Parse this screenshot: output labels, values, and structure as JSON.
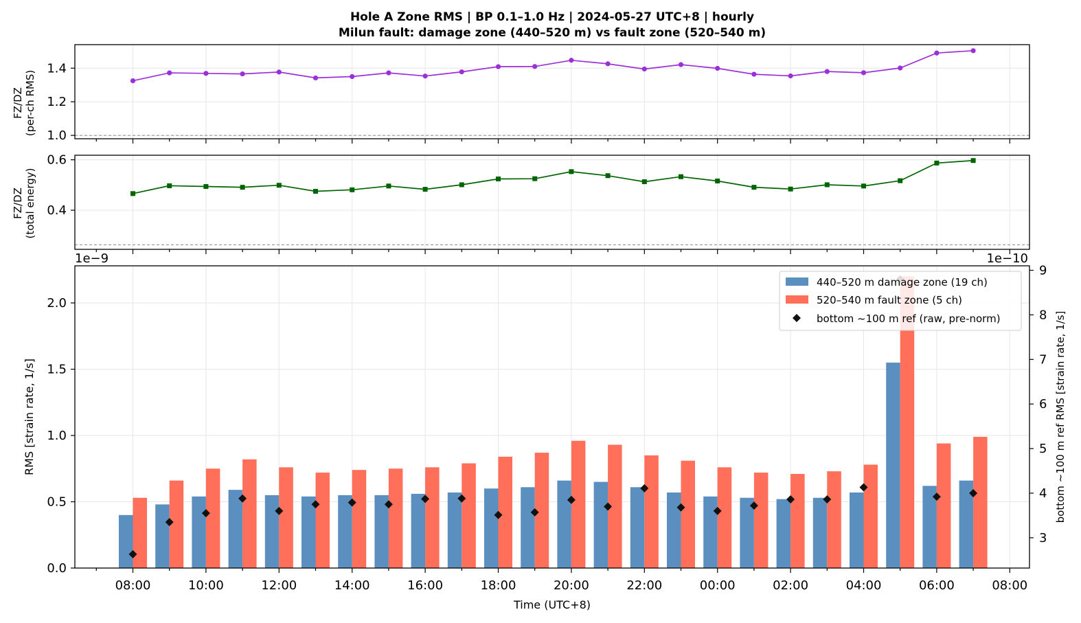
{
  "figure": {
    "title_line1": "Hole A Zone RMS  |  BP 0.1–1.0 Hz  |  2024-05-27 UTC+8  |  hourly",
    "title_line2": "Milun fault: damage zone (440–520 m) vs fault zone (520–540 m)",
    "xlabel": "Time (UTC+8)"
  },
  "colors": {
    "ratio_rms": "#9b30d9",
    "ratio_energy": "#006400",
    "damage_zone": "#5b8fc0",
    "fault_zone": "#ff6f59",
    "bottom_ref": "#111111",
    "grid": "#e6e6e6",
    "ref_line": "#888888"
  },
  "chart_data": [
    {
      "type": "line",
      "ylabel_line1": "FZ/DZ",
      "ylabel_line2": "(per-ch RMS)",
      "ylim": [
        0.98,
        1.54
      ],
      "yticks": [
        "1.0",
        "1.2",
        "1.4"
      ],
      "ytick_values": [
        1.0,
        1.2,
        1.4
      ],
      "reference_line": 1.0,
      "grid": true,
      "x": [
        "08:00",
        "09:00",
        "10:00",
        "11:00",
        "12:00",
        "13:00",
        "14:00",
        "15:00",
        "16:00",
        "17:00",
        "18:00",
        "19:00",
        "20:00",
        "21:00",
        "22:00",
        "23:00",
        "00:00",
        "01:00",
        "02:00",
        "03:00",
        "04:00",
        "05:00",
        "06:00",
        "07:00"
      ],
      "values": [
        1.325,
        1.372,
        1.369,
        1.366,
        1.377,
        1.342,
        1.35,
        1.372,
        1.353,
        1.378,
        1.409,
        1.41,
        1.447,
        1.426,
        1.395,
        1.421,
        1.399,
        1.364,
        1.354,
        1.38,
        1.373,
        1.401,
        1.49,
        1.504
      ]
    },
    {
      "type": "line",
      "ylabel_line1": "FZ/DZ",
      "ylabel_line2": "(total energy)",
      "ylim": [
        0.245,
        0.618
      ],
      "yticks": [
        "0.4",
        "0.6"
      ],
      "ytick_values": [
        0.4,
        0.6
      ],
      "reference_line": 0.263,
      "grid": true,
      "x": [
        "08:00",
        "09:00",
        "10:00",
        "11:00",
        "12:00",
        "13:00",
        "14:00",
        "15:00",
        "16:00",
        "17:00",
        "18:00",
        "19:00",
        "20:00",
        "21:00",
        "22:00",
        "23:00",
        "00:00",
        "01:00",
        "02:00",
        "03:00",
        "04:00",
        "05:00",
        "06:00",
        "07:00"
      ],
      "values": [
        0.466,
        0.497,
        0.494,
        0.491,
        0.499,
        0.475,
        0.481,
        0.496,
        0.483,
        0.501,
        0.524,
        0.525,
        0.553,
        0.537,
        0.513,
        0.533,
        0.516,
        0.491,
        0.484,
        0.501,
        0.496,
        0.517,
        0.587,
        0.597
      ]
    },
    {
      "type": "bar",
      "ylabel": "RMS  [strain rate, 1/s]",
      "y2label": "bottom ~100 m ref RMS  [strain rate, 1/s]",
      "offset_left": "1e−9",
      "offset_right": "1e−10",
      "ylim": [
        0,
        2.28
      ],
      "y2lim": [
        2.32,
        9.1
      ],
      "yticks": [
        "0.0",
        "0.5",
        "1.0",
        "1.5",
        "2.0"
      ],
      "ytick_values": [
        0,
        0.5,
        1.0,
        1.5,
        2.0
      ],
      "y2ticks": [
        "3",
        "4",
        "5",
        "6",
        "7",
        "8",
        "9"
      ],
      "y2tick_values": [
        3,
        4,
        5,
        6,
        7,
        8,
        9
      ],
      "xticks": [
        "08:00",
        "10:00",
        "12:00",
        "14:00",
        "16:00",
        "18:00",
        "20:00",
        "22:00",
        "00:00",
        "02:00",
        "04:00",
        "06:00",
        "08:00"
      ],
      "legend_position": "top-right",
      "grid": true,
      "categories": [
        "08:00",
        "09:00",
        "10:00",
        "11:00",
        "12:00",
        "13:00",
        "14:00",
        "15:00",
        "16:00",
        "17:00",
        "18:00",
        "19:00",
        "20:00",
        "21:00",
        "22:00",
        "23:00",
        "00:00",
        "01:00",
        "02:00",
        "03:00",
        "04:00",
        "05:00",
        "06:00",
        "07:00"
      ],
      "series": [
        {
          "name": "440–520 m  damage zone (19 ch)",
          "axis": "left",
          "values": [
            0.4,
            0.48,
            0.54,
            0.59,
            0.55,
            0.54,
            0.55,
            0.55,
            0.56,
            0.57,
            0.6,
            0.61,
            0.66,
            0.65,
            0.61,
            0.57,
            0.54,
            0.53,
            0.52,
            0.53,
            0.57,
            1.55,
            0.62,
            0.66
          ]
        },
        {
          "name": "520–540 m  fault zone (5 ch)",
          "axis": "left",
          "values": [
            0.53,
            0.66,
            0.75,
            0.82,
            0.76,
            0.72,
            0.74,
            0.75,
            0.76,
            0.79,
            0.84,
            0.87,
            0.96,
            0.93,
            0.85,
            0.81,
            0.76,
            0.72,
            0.71,
            0.73,
            0.78,
            2.2,
            0.94,
            0.99
          ]
        },
        {
          "name": "bottom ~100 m ref (raw, pre-norm)",
          "axis": "right",
          "values": [
            2.63,
            3.35,
            3.55,
            3.88,
            3.6,
            3.75,
            3.79,
            3.75,
            3.87,
            3.88,
            3.51,
            3.57,
            3.85,
            3.7,
            4.11,
            3.68,
            3.6,
            3.72,
            3.86,
            3.86,
            4.13,
            8.8,
            3.92,
            4.0
          ]
        }
      ]
    }
  ]
}
